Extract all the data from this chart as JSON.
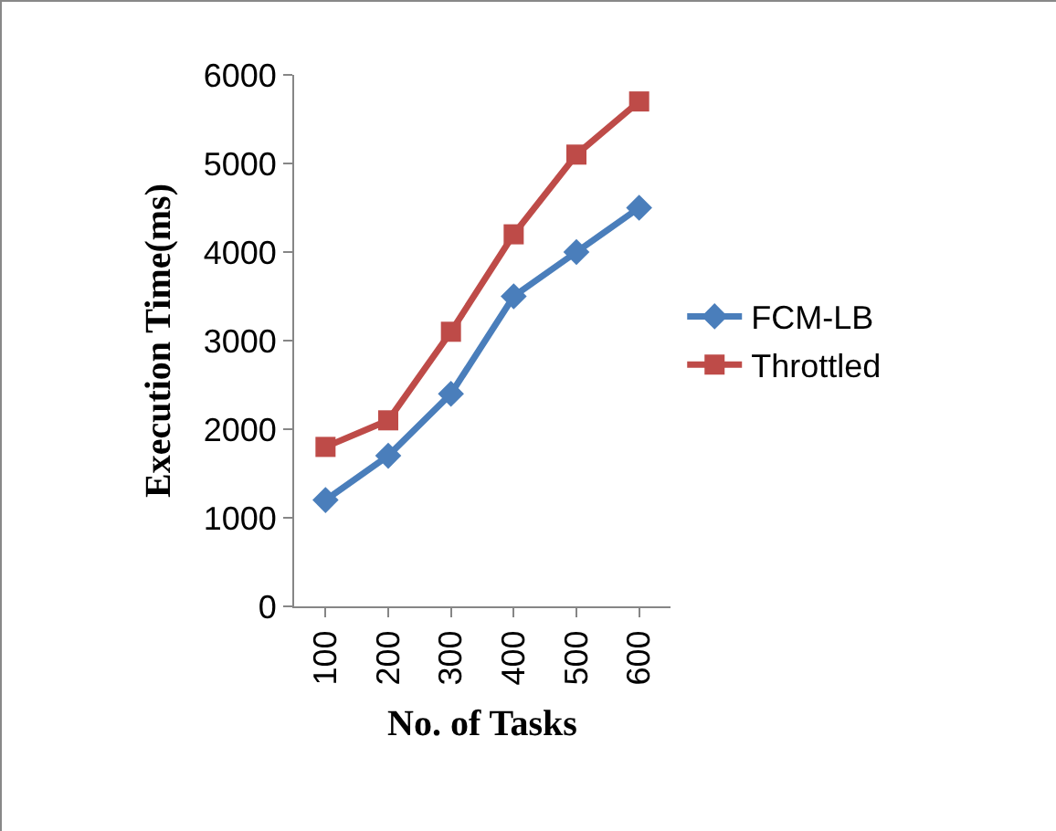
{
  "chart_data": {
    "type": "line",
    "xlabel": "No. of Tasks",
    "ylabel": "Execution Time(ms)",
    "categories": [
      "100",
      "200",
      "300",
      "400",
      "500",
      "600"
    ],
    "series": [
      {
        "name": "FCM-LB",
        "color": "#4a7ebb",
        "marker": "diamond",
        "values": [
          1200,
          1700,
          2400,
          3500,
          4000,
          4500
        ]
      },
      {
        "name": "Throttled",
        "color": "#be4b48",
        "marker": "square",
        "values": [
          1800,
          2100,
          3100,
          4200,
          5100,
          5700
        ]
      }
    ],
    "ylim": [
      0,
      6000
    ],
    "yticks": [
      0,
      1000,
      2000,
      3000,
      4000,
      5000,
      6000
    ],
    "grid": false,
    "legend": "right",
    "line_style": "solid"
  }
}
